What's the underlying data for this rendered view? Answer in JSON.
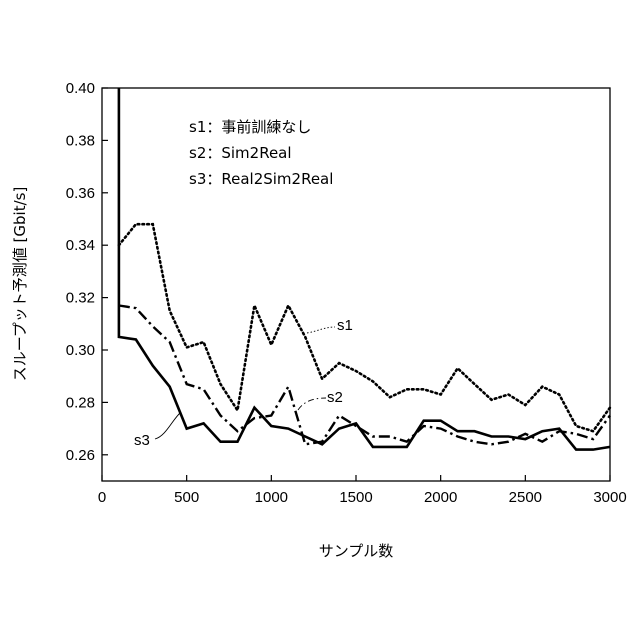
{
  "chart_data": {
    "type": "line",
    "title": "",
    "xlabel": "サンプル数",
    "ylabel": "スループット予測値 [Gbit/s]",
    "xlim": [
      0,
      3000
    ],
    "ylim": [
      0.25,
      0.4
    ],
    "xticks": [
      0,
      500,
      1000,
      1500,
      2000,
      2500,
      3000
    ],
    "yticks": [
      0.26,
      0.28,
      0.3,
      0.32,
      0.34,
      0.36,
      0.38,
      0.4
    ],
    "xtick_labels": [
      "0",
      "500",
      "1000",
      "1500",
      "2000",
      "2500",
      "3000"
    ],
    "ytick_labels": [
      "0.26",
      "0.28",
      "0.30",
      "0.32",
      "0.34",
      "0.36",
      "0.38",
      "0.40"
    ],
    "grid": false,
    "legend": {
      "placement": "top-left",
      "entries": [
        "s1：事前訓練なし",
        "s2：Sim2Real",
        "s3：Real2Sim2Real"
      ]
    },
    "series": [
      {
        "name": "s1",
        "label": "s1",
        "style": "dotted",
        "x": [
          100,
          200,
          300,
          400,
          500,
          600,
          700,
          800,
          900,
          1000,
          1100,
          1200,
          1300,
          1400,
          1500,
          1600,
          1700,
          1800,
          1900,
          2000,
          2100,
          2200,
          2300,
          2400,
          2500,
          2600,
          2700,
          2800,
          2900,
          3000
        ],
        "values": [
          0.34,
          0.348,
          0.348,
          0.315,
          0.301,
          0.303,
          0.287,
          0.277,
          0.317,
          0.302,
          0.317,
          0.305,
          0.289,
          0.295,
          0.292,
          0.288,
          0.282,
          0.285,
          0.285,
          0.283,
          0.293,
          0.287,
          0.281,
          0.283,
          0.279,
          0.286,
          0.283,
          0.271,
          0.269,
          0.278
        ]
      },
      {
        "name": "s2",
        "label": "s2",
        "style": "dashdot",
        "x": [
          100,
          200,
          300,
          400,
          500,
          600,
          700,
          800,
          900,
          1000,
          1100,
          1200,
          1300,
          1400,
          1500,
          1600,
          1700,
          1800,
          1900,
          2000,
          2100,
          2200,
          2300,
          2400,
          2500,
          2600,
          2700,
          2800,
          2900,
          3000
        ],
        "values": [
          0.317,
          0.316,
          0.309,
          0.303,
          0.287,
          0.285,
          0.275,
          0.269,
          0.274,
          0.275,
          0.286,
          0.264,
          0.265,
          0.275,
          0.271,
          0.267,
          0.267,
          0.265,
          0.271,
          0.27,
          0.267,
          0.265,
          0.264,
          0.265,
          0.268,
          0.265,
          0.269,
          0.268,
          0.266,
          0.275
        ]
      },
      {
        "name": "s3",
        "label": "s3",
        "style": "solid",
        "x": [
          100,
          100,
          200,
          300,
          400,
          500,
          600,
          700,
          800,
          900,
          1000,
          1100,
          1200,
          1300,
          1400,
          1500,
          1600,
          1700,
          1800,
          1900,
          2000,
          2100,
          2200,
          2300,
          2400,
          2500,
          2600,
          2700,
          2800,
          2900,
          3000
        ],
        "values": [
          0.4,
          0.305,
          0.304,
          0.294,
          0.286,
          0.27,
          0.272,
          0.265,
          0.265,
          0.278,
          0.271,
          0.27,
          0.267,
          0.264,
          0.27,
          0.272,
          0.263,
          0.263,
          0.263,
          0.273,
          0.273,
          0.269,
          0.269,
          0.267,
          0.267,
          0.266,
          0.269,
          0.27,
          0.262,
          0.262,
          0.263
        ]
      }
    ]
  }
}
